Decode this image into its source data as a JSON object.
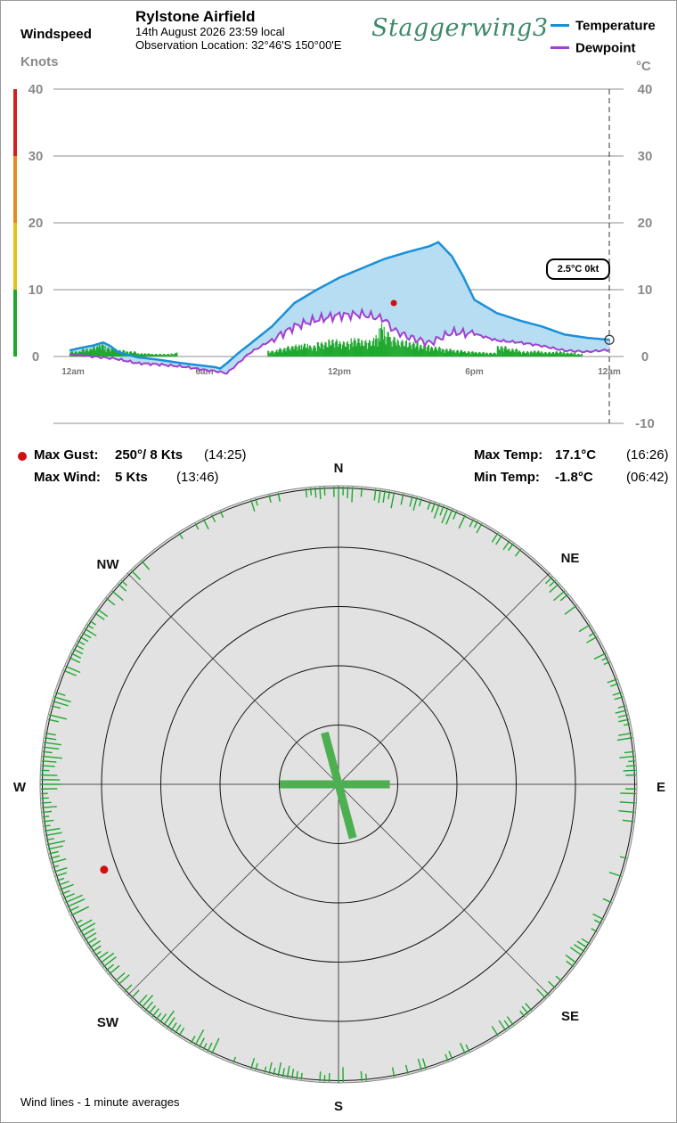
{
  "header": {
    "left_title": "Windspeed",
    "left_units": "Knots",
    "station": "Rylstone Airfield",
    "date_line": "14th August 2026  23:59 local",
    "location_line": "Observation Location: 32°46'S 150°00'E",
    "logo_text": "Staggerwing3",
    "right_units": "°C"
  },
  "legend": [
    {
      "label": "Temperature",
      "color": "#1a90d8"
    },
    {
      "label": "Dewpoint",
      "color": "#a040d0"
    }
  ],
  "current_label": "2.5°C  0kt",
  "stats": {
    "max_gust_label": "Max Gust:",
    "max_gust_value": "250°/  8 Kts",
    "max_gust_time": "(14:25)",
    "max_wind_label": "Max Wind:",
    "max_wind_value": "5 Kts",
    "max_wind_time": "(13:46)",
    "max_temp_label": "Max Temp:",
    "max_temp_value": "17.1°C",
    "max_temp_time": "(16:26)",
    "min_temp_label": "Min Temp:",
    "min_temp_value": "-1.8°C",
    "min_temp_time": "(06:42)"
  },
  "footer_note": "Wind lines - 1 minute averages",
  "colors": {
    "temperature": "#1a90d8",
    "dewpoint": "#a040d0",
    "temp_fill": "#b7ddf2",
    "wind": "#1fa82e",
    "gust": "#d01010",
    "rose_bg": "#e2e2e2",
    "scale_bands": [
      "#1fa82e",
      "#e5c21a",
      "#e88a24",
      "#d02020"
    ]
  },
  "chart_data": {
    "type": "line",
    "x_ticks": [
      "12am",
      "6am",
      "12pm",
      "6pm",
      "12am"
    ],
    "x_range_hours": [
      0,
      24
    ],
    "left_axis": {
      "label": "Knots",
      "ticks": [
        0,
        10,
        20,
        30,
        40
      ],
      "range": [
        0,
        40
      ]
    },
    "right_axis": {
      "label": "°C",
      "ticks": [
        40,
        30,
        20,
        10,
        0,
        -10
      ],
      "range": [
        -10,
        40
      ]
    },
    "series": [
      {
        "name": "Temperature",
        "points": [
          [
            0,
            0.9
          ],
          [
            0.5,
            1.3
          ],
          [
            1,
            1.6
          ],
          [
            1.5,
            2.1
          ],
          [
            1.8,
            1.6
          ],
          [
            2.2,
            0.6
          ],
          [
            3,
            -0.1
          ],
          [
            4,
            -0.5
          ],
          [
            5,
            -1.0
          ],
          [
            5.5,
            -1.2
          ],
          [
            6,
            -1.4
          ],
          [
            6.5,
            -1.6
          ],
          [
            6.7,
            -1.8
          ],
          [
            7,
            -1.0
          ],
          [
            7.5,
            0.5
          ],
          [
            8,
            1.8
          ],
          [
            9,
            4.5
          ],
          [
            10,
            8.0
          ],
          [
            11,
            10.0
          ],
          [
            12,
            11.8
          ],
          [
            13,
            13.2
          ],
          [
            14,
            14.6
          ],
          [
            15,
            15.6
          ],
          [
            16,
            16.5
          ],
          [
            16.4,
            17.1
          ],
          [
            17,
            15.0
          ],
          [
            17.5,
            12.0
          ],
          [
            18,
            8.5
          ],
          [
            19,
            6.5
          ],
          [
            20,
            5.4
          ],
          [
            21,
            4.5
          ],
          [
            22,
            3.3
          ],
          [
            23,
            2.8
          ],
          [
            24,
            2.5
          ]
        ]
      },
      {
        "name": "Dewpoint",
        "points": [
          [
            0,
            0.3
          ],
          [
            0.5,
            0.2
          ],
          [
            1,
            0.0
          ],
          [
            2,
            -0.3
          ],
          [
            3,
            -1.0
          ],
          [
            4,
            -1.2
          ],
          [
            5,
            -1.5
          ],
          [
            6,
            -2.0
          ],
          [
            6.5,
            -2.2
          ],
          [
            7,
            -2.5
          ],
          [
            8,
            0.5
          ],
          [
            9,
            2.5
          ],
          [
            10,
            4.5
          ],
          [
            11,
            5.5
          ],
          [
            12,
            6.2
          ],
          [
            13,
            6.3
          ],
          [
            14,
            5.6
          ],
          [
            14.4,
            4.0
          ],
          [
            15,
            3.0
          ],
          [
            16,
            2.0
          ],
          [
            17,
            3.6
          ],
          [
            18,
            3.4
          ],
          [
            19,
            2.4
          ],
          [
            20,
            2.1
          ],
          [
            21,
            1.6
          ],
          [
            22,
            0.9
          ],
          [
            23,
            0.7
          ],
          [
            24,
            1.0
          ]
        ]
      }
    ],
    "wind_bars_knots": [
      [
        0,
        0.8
      ],
      [
        0.5,
        1.2
      ],
      [
        1,
        1.6
      ],
      [
        1.3,
        2.0
      ],
      [
        1.6,
        1.4
      ],
      [
        2.0,
        1.0
      ],
      [
        2.5,
        0.8
      ],
      [
        3,
        0.5
      ],
      [
        3.6,
        0.4
      ],
      [
        4.5,
        0.5
      ],
      [
        4.7,
        0.6
      ],
      [
        8.8,
        0.9
      ],
      [
        9.2,
        1.3
      ],
      [
        9.6,
        1.6
      ],
      [
        10,
        1.8
      ],
      [
        10.3,
        2.0
      ],
      [
        10.6,
        1.7
      ],
      [
        11,
        2.2
      ],
      [
        11.5,
        2.6
      ],
      [
        12,
        2.3
      ],
      [
        12.5,
        2.8
      ],
      [
        13,
        2.5
      ],
      [
        13.5,
        3.2
      ],
      [
        13.75,
        5.0
      ],
      [
        14,
        3.8
      ],
      [
        14.2,
        3.0
      ],
      [
        14.6,
        2.5
      ],
      [
        15,
        2.2
      ],
      [
        15.5,
        1.8
      ],
      [
        16,
        1.5
      ],
      [
        16.5,
        1.2
      ],
      [
        17,
        1.0
      ],
      [
        17.5,
        0.8
      ],
      [
        18,
        0.7
      ],
      [
        18.5,
        0.6
      ],
      [
        19,
        1.6
      ],
      [
        19.5,
        1.2
      ],
      [
        20,
        0.8
      ],
      [
        20.5,
        0.9
      ],
      [
        21,
        0.7
      ],
      [
        21.5,
        0.8
      ],
      [
        22,
        0.6
      ],
      [
        22.5,
        0.4
      ]
    ],
    "max_gust_marker": {
      "time_hours": 14.42,
      "knots": 8
    },
    "current_marker": {
      "time_hours": 24,
      "temp_c": 2.5
    }
  },
  "rose": {
    "cardinals": [
      "N",
      "NE",
      "E",
      "SE",
      "S",
      "SW",
      "W",
      "NW"
    ],
    "ring_knots": [
      1,
      2,
      3,
      4,
      5
    ],
    "cross_segments": [
      {
        "from_deg": 345,
        "to_deg": 165,
        "knots_a": 1,
        "knots_b": 1.3
      },
      {
        "from_deg": 270,
        "to_deg": 90,
        "knots_a": 1.1,
        "knots_b": 1.2
      }
    ],
    "gust_direction_deg": 250,
    "gust_knots": 8
  }
}
